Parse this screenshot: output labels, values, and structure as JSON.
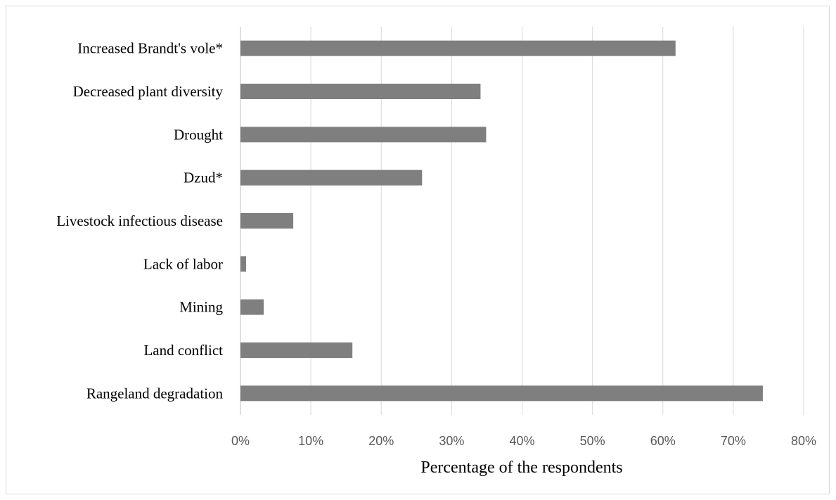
{
  "chart_data": {
    "type": "bar",
    "orientation": "horizontal",
    "categories": [
      "Increased Brandt's vole*",
      "Decreased plant diversity",
      "Drought",
      "Dzud*",
      "Livestock infectious disease",
      "Lack of labor",
      "Mining",
      "Land conflict",
      "Rangeland degradation"
    ],
    "values": [
      61.8,
      34.1,
      34.9,
      25.8,
      7.5,
      0.8,
      3.3,
      15.9,
      74.2
    ],
    "value_unit": "percent",
    "xlim": [
      0,
      80
    ],
    "xticks": [
      0,
      10,
      20,
      30,
      40,
      50,
      60,
      70,
      80
    ],
    "xtick_labels": [
      "0%",
      "10%",
      "20%",
      "30%",
      "40%",
      "50%",
      "60%",
      "70%",
      "80%"
    ],
    "title": "",
    "xlabel": "Percentage of the respondents",
    "ylabel": "",
    "grid": "vertical",
    "legend": "none",
    "bar_color": "#7f7f7f",
    "grid_color": "#d9d9d9"
  }
}
